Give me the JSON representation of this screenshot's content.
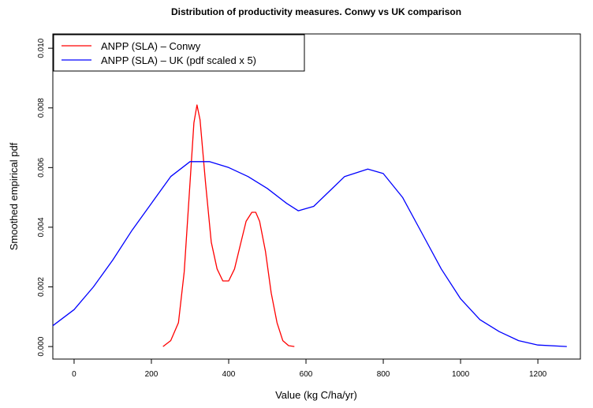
{
  "chart_data": {
    "type": "line",
    "title": "Distribution of productivity measures. Conwy vs UK comparison",
    "x_label": "Value (kg C/ha/yr)",
    "y_label": "Smoothed empirical pdf",
    "legend": "topleft",
    "grid": false,
    "xlim": [
      -55,
      1310
    ],
    "ylim": [
      -0.00042,
      0.01048
    ],
    "xticks": [
      0,
      200,
      400,
      600,
      800,
      1000,
      1200
    ],
    "yticks": [
      {
        "value": 0,
        "label": "0.000"
      },
      {
        "value": 0.002,
        "label": "0.002"
      },
      {
        "value": 0.004,
        "label": "0.004"
      },
      {
        "value": 0.006,
        "label": "0.006"
      },
      {
        "value": 0.008,
        "label": "0.008"
      },
      {
        "value": 0.01,
        "label": "0.010"
      }
    ],
    "series": [
      {
        "name": "ANPP (SLA) – Conwy",
        "color": "#ff0000",
        "x": [
          230,
          250,
          270,
          285,
          300,
          310,
          318,
          326,
          340,
          355,
          370,
          385,
          400,
          415,
          430,
          445,
          460,
          470,
          480,
          495,
          510,
          525,
          540,
          555,
          570
        ],
        "values": [
          0,
          0.0002,
          0.0008,
          0.0025,
          0.0055,
          0.0075,
          0.0081,
          0.0076,
          0.0055,
          0.0035,
          0.0026,
          0.0022,
          0.0022,
          0.0026,
          0.0034,
          0.0042,
          0.0045,
          0.0045,
          0.0042,
          0.0032,
          0.0018,
          0.0008,
          0.0002,
          3e-05,
          0
        ]
      },
      {
        "name": "ANPP (SLA) – UK (pdf scaled x 5)",
        "color": "#0000ff",
        "x": [
          -55,
          0,
          50,
          100,
          150,
          200,
          250,
          300,
          350,
          400,
          450,
          500,
          550,
          580,
          620,
          660,
          700,
          760,
          800,
          850,
          900,
          950,
          1000,
          1050,
          1100,
          1150,
          1200,
          1275
        ],
        "values": [
          0.0007,
          0.00124,
          0.002,
          0.0029,
          0.0039,
          0.0048,
          0.0057,
          0.0062,
          0.0062,
          0.006,
          0.0057,
          0.0053,
          0.0048,
          0.00455,
          0.0047,
          0.0052,
          0.0057,
          0.00595,
          0.0058,
          0.005,
          0.0038,
          0.0026,
          0.0016,
          0.0009,
          0.0005,
          0.0002,
          5e-05,
          0
        ]
      }
    ]
  }
}
